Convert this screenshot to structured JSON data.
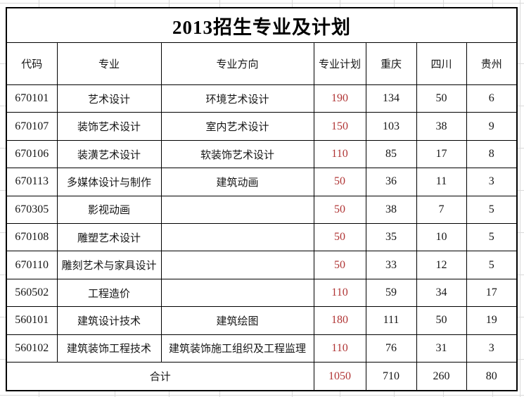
{
  "title": "2013招生专业及计划",
  "table": {
    "columns": [
      "代码",
      "专业",
      "专业方向",
      "专业计划",
      "重庆",
      "四川",
      "贵州"
    ],
    "rows": [
      {
        "code": "670101",
        "major": "艺术设计",
        "direction": "环境艺术设计",
        "plan": "190",
        "chongqing": "134",
        "sichuan": "50",
        "guizhou": "6"
      },
      {
        "code": "670107",
        "major": "装饰艺术设计",
        "direction": "室内艺术设计",
        "plan": "150",
        "chongqing": "103",
        "sichuan": "38",
        "guizhou": "9"
      },
      {
        "code": "670106",
        "major": "装潢艺术设计",
        "direction": "软装饰艺术设计",
        "plan": "110",
        "chongqing": "85",
        "sichuan": "17",
        "guizhou": "8"
      },
      {
        "code": "670113",
        "major": "多媒体设计与制作",
        "direction": "建筑动画",
        "plan": "50",
        "chongqing": "36",
        "sichuan": "11",
        "guizhou": "3"
      },
      {
        "code": "670305",
        "major": "影视动画",
        "direction": "",
        "plan": "50",
        "chongqing": "38",
        "sichuan": "7",
        "guizhou": "5"
      },
      {
        "code": "670108",
        "major": "雕塑艺术设计",
        "direction": "",
        "plan": "50",
        "chongqing": "35",
        "sichuan": "10",
        "guizhou": "5"
      },
      {
        "code": "670110",
        "major": "雕刻艺术与家具设计",
        "direction": "",
        "plan": "50",
        "chongqing": "33",
        "sichuan": "12",
        "guizhou": "5"
      },
      {
        "code": "560502",
        "major": "工程造价",
        "direction": "",
        "plan": "110",
        "chongqing": "59",
        "sichuan": "34",
        "guizhou": "17"
      },
      {
        "code": "560101",
        "major": "建筑设计技术",
        "direction": "建筑绘图",
        "plan": "180",
        "chongqing": "111",
        "sichuan": "50",
        "guizhou": "19"
      },
      {
        "code": "560102",
        "major": "建筑装饰工程技术",
        "direction": "建筑装饰施工组织及工程监理",
        "plan": "110",
        "chongqing": "76",
        "sichuan": "31",
        "guizhou": "3"
      }
    ],
    "total": {
      "label": "合计",
      "plan": "1050",
      "chongqing": "710",
      "sichuan": "260",
      "guizhou": "80"
    }
  },
  "colors": {
    "plan_red": "#b03535",
    "text": "#161616",
    "table_border": "#000000",
    "gridline": "#d9d9d9"
  }
}
